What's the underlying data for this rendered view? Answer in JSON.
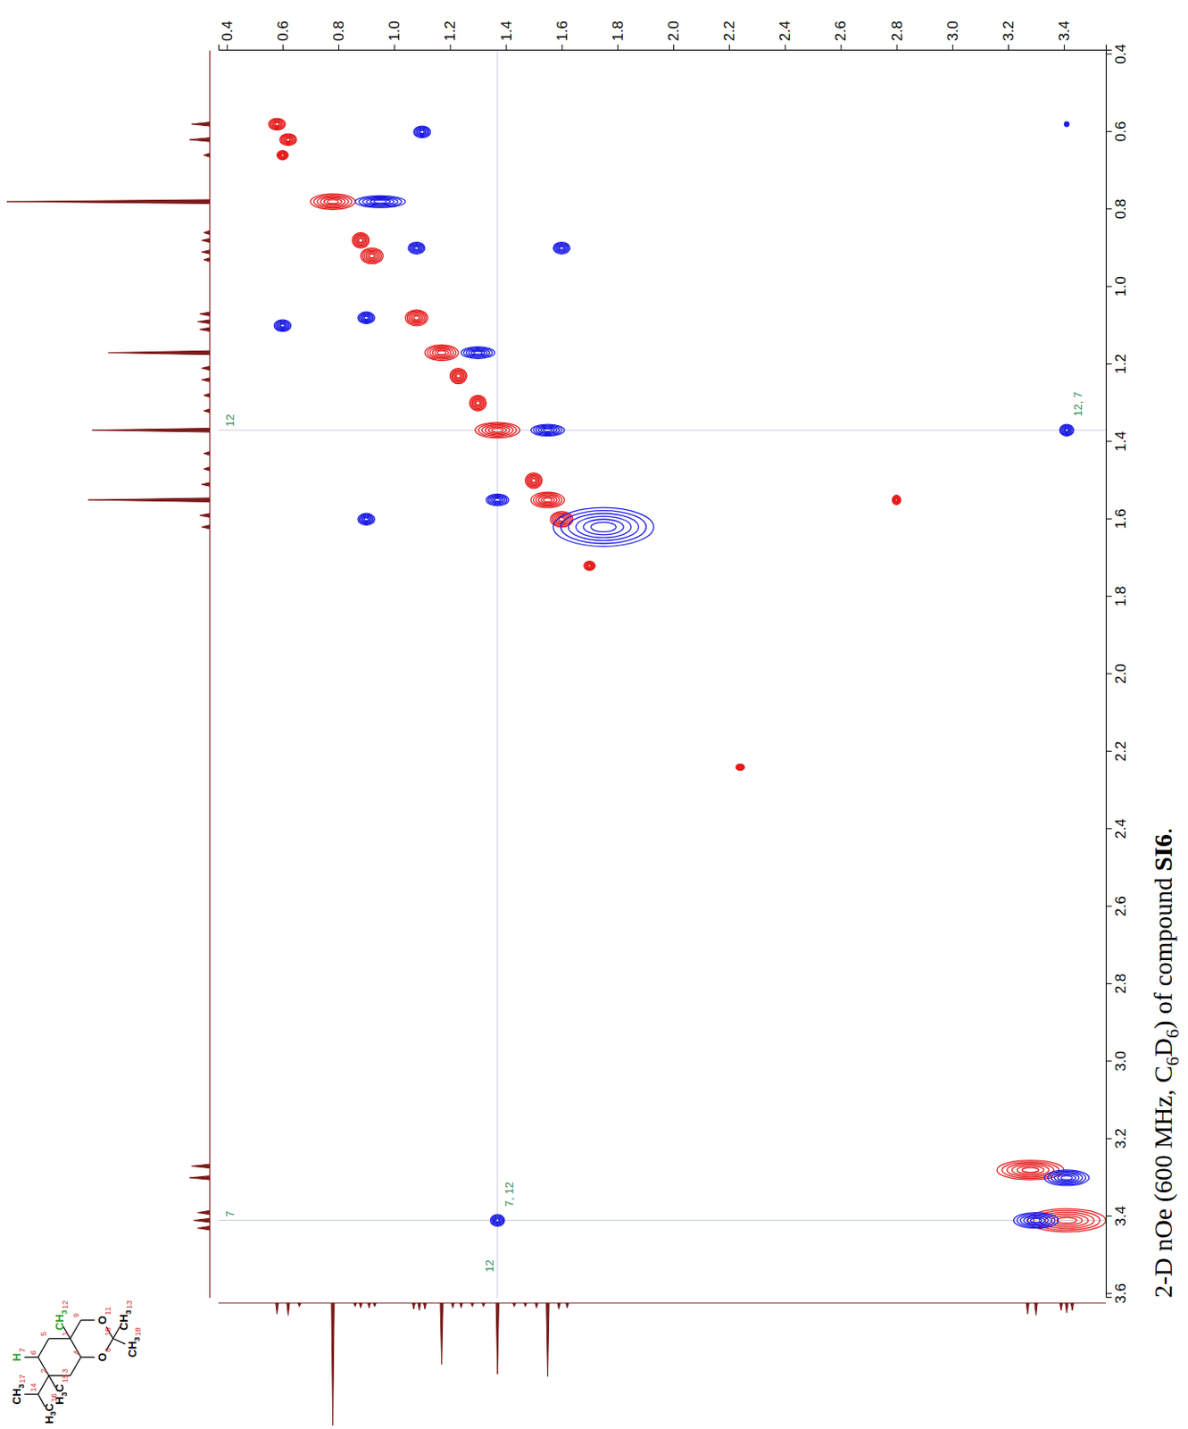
{
  "chart_data": {
    "type": "contour",
    "title": "2-D nOe (600 MHz, C6D6) of compound SI6.",
    "xlim": [
      3.61,
      0.39
    ],
    "xticks": [
      0.4,
      0.6,
      0.8,
      {
        "value": 1,
        "label": "1.0"
      },
      1.2,
      1.4,
      1.6,
      1.8,
      {
        "value": 2,
        "label": "2.0"
      },
      2.2,
      2.4,
      2.6,
      2.8,
      {
        "value": 3,
        "label": "3.0"
      },
      3.2,
      3.4,
      3.6
    ],
    "ylim": [
      0.37,
      3.55
    ],
    "yticks": [
      0.4,
      0.6,
      0.8,
      {
        "value": 1,
        "label": "1.0"
      },
      1.2,
      1.4,
      1.6,
      1.8,
      {
        "value": 2,
        "label": "2.0"
      },
      2.2,
      2.4,
      2.6,
      2.8,
      {
        "value": 3,
        "label": "3.0"
      },
      3.2,
      3.4
    ],
    "series": [
      {
        "color": "#e61919",
        "x": [
          0.58,
          0.62,
          0.78,
          0.88,
          0.92,
          1.08,
          1.17,
          1.23,
          1.3,
          1.37,
          1.5,
          1.55,
          1.6,
          2.24,
          3.28,
          3.41,
          1.55,
          0.66,
          1.72
        ],
        "values": [
          0.58,
          0.62,
          0.78,
          0.88,
          0.92,
          1.08,
          1.17,
          1.23,
          1.3,
          1.37,
          1.5,
          1.55,
          1.6,
          2.24,
          3.28,
          3.41,
          2.8,
          0.6,
          1.7
        ],
        "x_width": [
          0.015,
          0.015,
          0.02,
          0.02,
          0.02,
          0.02,
          0.02,
          0.02,
          0.02,
          0.02,
          0.02,
          0.02,
          0.02,
          0.008,
          0.025,
          0.03,
          0.012,
          0.012,
          0.012
        ],
        "y_width": [
          0.03,
          0.03,
          0.08,
          0.03,
          0.04,
          0.04,
          0.06,
          0.03,
          0.03,
          0.08,
          0.03,
          0.06,
          0.04,
          0.015,
          0.12,
          0.14,
          0.015,
          0.02,
          0.02
        ]
      },
      {
        "color": "#1c1ce6",
        "x": [
          0.6,
          1.1,
          0.78,
          0.9,
          1.08,
          1.17,
          1.37,
          1.55,
          1.6,
          0.9,
          1.62,
          3.41,
          1.37,
          3.3,
          3.41,
          0.58
        ],
        "values": [
          1.1,
          0.6,
          0.95,
          1.08,
          0.9,
          1.3,
          1.55,
          1.37,
          0.9,
          1.6,
          1.75,
          1.37,
          3.41,
          3.41,
          3.3,
          3.41
        ],
        "x_width": [
          0.015,
          0.015,
          0.015,
          0.015,
          0.015,
          0.015,
          0.015,
          0.015,
          0.015,
          0.015,
          0.05,
          0.015,
          0.015,
          0.02,
          0.02,
          0.006
        ],
        "y_width": [
          0.03,
          0.03,
          0.09,
          0.03,
          0.03,
          0.06,
          0.06,
          0.04,
          0.03,
          0.03,
          0.18,
          0.025,
          0.025,
          0.08,
          0.08,
          0.008
        ]
      }
    ],
    "projection": {
      "color": "#7a1a1a",
      "ylim": [
        0,
        100
      ],
      "x": [
        0.58,
        0.62,
        0.66,
        0.78,
        0.86,
        0.88,
        0.91,
        0.93,
        1.07,
        1.09,
        1.11,
        1.17,
        1.21,
        1.24,
        1.28,
        1.32,
        1.37,
        1.43,
        1.47,
        1.51,
        1.55,
        1.59,
        1.62,
        3.27,
        3.3,
        3.39,
        3.41,
        3.43
      ],
      "values": [
        9,
        10,
        3,
        100,
        3,
        4,
        4,
        3,
        5,
        6,
        5,
        50,
        4,
        4,
        3,
        3,
        58,
        3,
        3,
        4,
        60,
        5,
        4,
        9,
        10,
        6,
        8,
        6
      ]
    },
    "guides": [
      {
        "x": 1.37,
        "label": "12"
      },
      {
        "x": 3.41,
        "label": "7"
      },
      {
        "y": 1.37,
        "label": "12"
      }
    ],
    "peak_labels": [
      {
        "x": 3.41,
        "y": 1.37,
        "label": "7, 12"
      },
      {
        "x": 1.37,
        "y": 3.41,
        "label": "12, 7"
      }
    ]
  },
  "structure": {
    "groups": [
      {
        "text": "CH3",
        "number": "17"
      },
      {
        "text": "H3C",
        "number": "16"
      },
      {
        "text": "H3C",
        "number": "15"
      },
      {
        "text": "H",
        "number": "7",
        "color": "#2e9e2e"
      },
      {
        "text": "CH3",
        "number": "12",
        "color": "#2e9e2e"
      },
      {
        "text": "O",
        "number": "11"
      },
      {
        "text": "O",
        "number": "8"
      },
      {
        "text": "CH3",
        "number": "13"
      },
      {
        "text": "CH3",
        "number": "18"
      }
    ],
    "atom_numbers": [
      "14",
      "2",
      "6",
      "5",
      "1",
      "4",
      "3",
      "9",
      "10"
    ],
    "number_color": "#d42a2a"
  }
}
